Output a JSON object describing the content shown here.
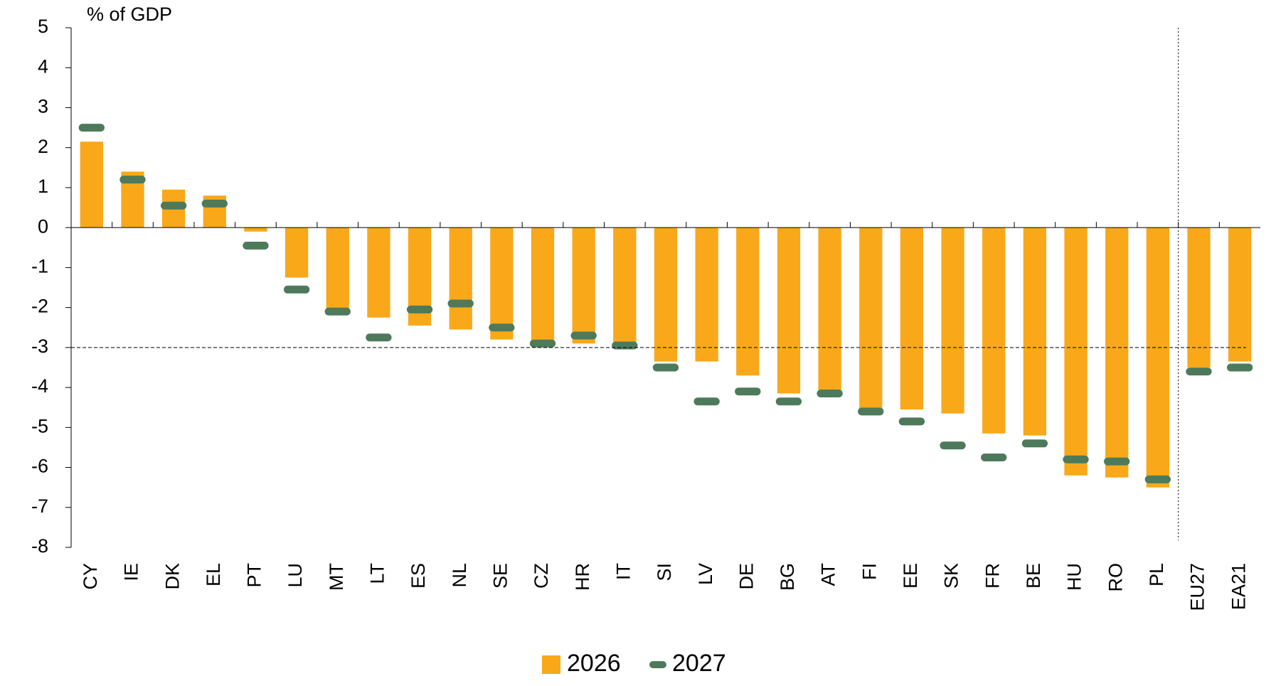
{
  "chart_data": {
    "type": "bar",
    "y_axis_label": "% of GDP",
    "categories": [
      "CY",
      "IE",
      "DK",
      "EL",
      "PT",
      "LU",
      "MT",
      "LT",
      "ES",
      "NL",
      "SE",
      "CZ",
      "HR",
      "IT",
      "SI",
      "LV",
      "DE",
      "BG",
      "AT",
      "FI",
      "EE",
      "SK",
      "FR",
      "BE",
      "HU",
      "RO",
      "PL",
      "EU27",
      "EA21"
    ],
    "series": [
      {
        "name": "2026",
        "color": "#f9a81a",
        "values": [
          2.15,
          1.4,
          0.95,
          0.8,
          -0.1,
          -1.25,
          -2.05,
          -2.25,
          -2.45,
          -2.55,
          -2.8,
          -2.95,
          -2.9,
          -3.0,
          -3.35,
          -3.35,
          -3.7,
          -4.15,
          -4.2,
          -4.65,
          -4.55,
          -4.65,
          -5.15,
          -5.2,
          -6.2,
          -6.25,
          -6.5,
          -3.5,
          -3.35
        ]
      },
      {
        "name": "2027",
        "color": "#4e7a5c",
        "values": [
          2.5,
          1.2,
          0.55,
          0.6,
          -0.45,
          -1.55,
          -2.1,
          -2.75,
          -2.05,
          -1.9,
          -2.5,
          -2.9,
          -2.7,
          -2.95,
          -3.5,
          -4.35,
          -4.1,
          -4.35,
          -4.15,
          -4.6,
          -4.85,
          -5.45,
          -5.75,
          -5.4,
          -5.8,
          -5.85,
          -6.3,
          -3.6,
          -3.5
        ]
      }
    ],
    "ylim": [
      -8,
      5
    ],
    "yticks": [
      -8,
      -7,
      -6,
      -5,
      -4,
      -3,
      -2,
      -1,
      0,
      1,
      2,
      3,
      4,
      5
    ],
    "reference_line": -3,
    "legend": "bottom"
  }
}
